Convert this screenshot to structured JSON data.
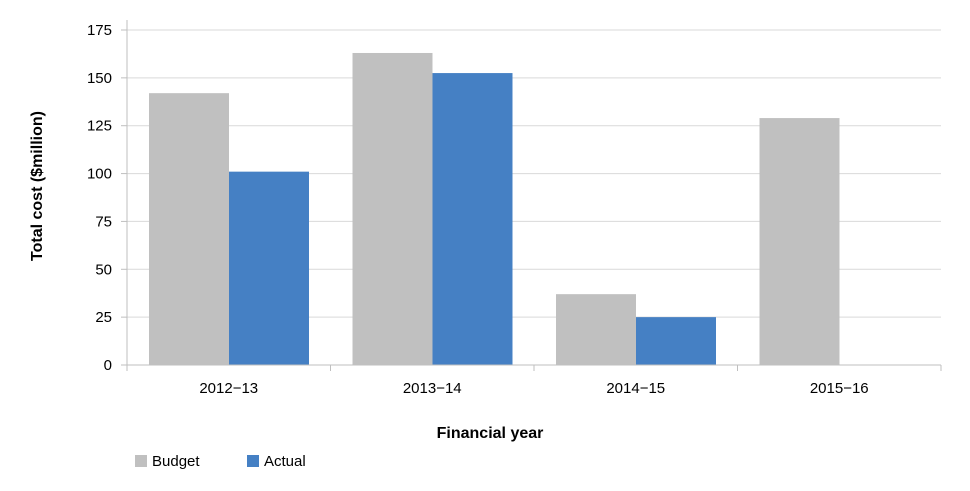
{
  "chart_data": {
    "type": "bar",
    "categories": [
      "2012−13",
      "2013−14",
      "2014−15",
      "2015−16"
    ],
    "series": [
      {
        "name": "Budget",
        "color": "#c0c0c0",
        "values": [
          142,
          163,
          37,
          129
        ]
      },
      {
        "name": "Actual",
        "color": "#4580c4",
        "values": [
          101,
          152.5,
          25,
          null
        ]
      }
    ],
    "xlabel": "Financial year",
    "ylabel": "Total cost ($million)",
    "ylim": [
      0,
      175
    ],
    "yticks": [
      0,
      25,
      50,
      75,
      100,
      125,
      150,
      175
    ],
    "grid": true,
    "legend_position": "bottom-left"
  }
}
